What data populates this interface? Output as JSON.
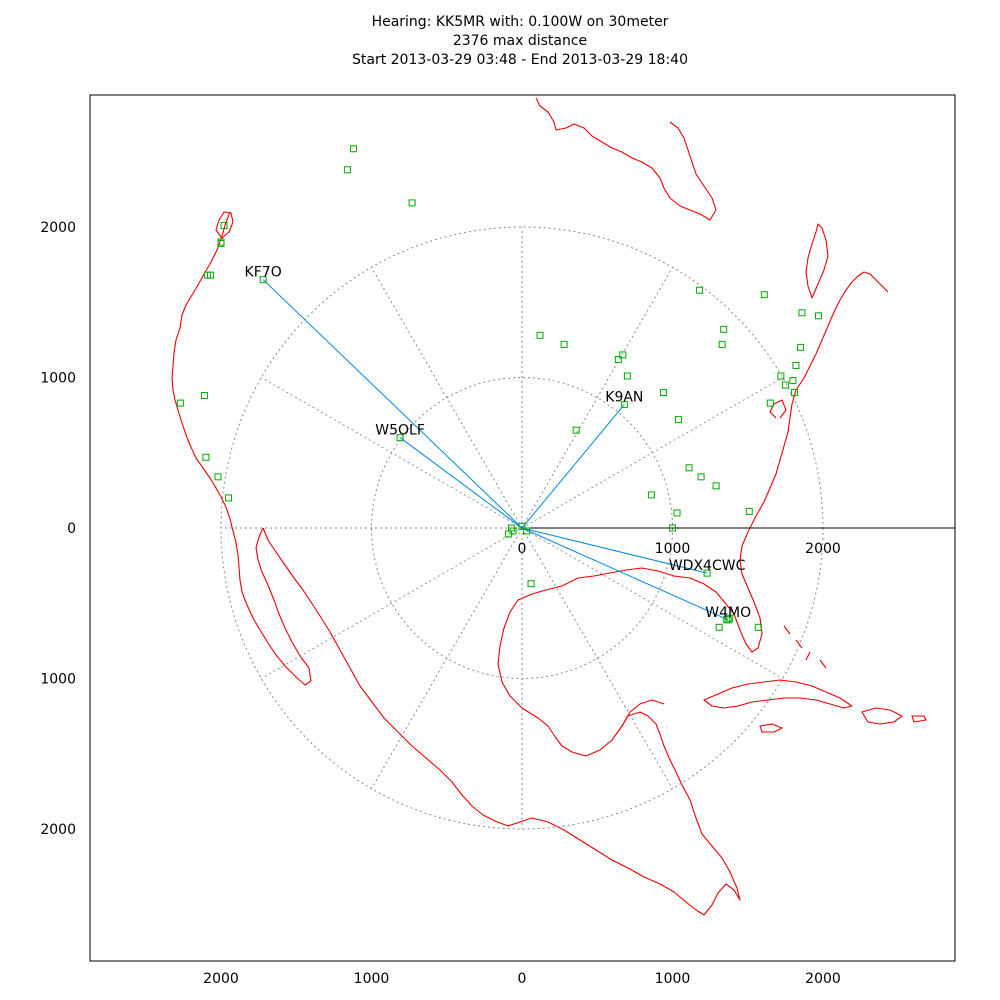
{
  "chart_data": {
    "type": "scatter",
    "title_lines": [
      "Hearing: KK5MR with: 0.100W on 30meter",
      "2376 max distance",
      "Start 2013-03-29 03:48 - End 2013-03-29 18:40"
    ],
    "axes": {
      "x_ticks": [
        2000,
        1000,
        0,
        1000,
        2000
      ],
      "y_ticks": [
        2000,
        1000,
        0,
        1000,
        2000
      ],
      "xlim": [
        -2875,
        2875
      ],
      "ylim": [
        -2875,
        2875
      ],
      "inner_x_ticks": [
        0,
        1000,
        2000
      ]
    },
    "polar_grid": {
      "rings": [
        1000,
        2000
      ],
      "spokes_deg": 30
    },
    "colors": {
      "map": "#ee0000",
      "spots": "#00aa00",
      "paths": "#0088dd",
      "grid": "#888888",
      "axis": "#000000"
    },
    "labeled_paths": [
      {
        "label": "KF7O",
        "x": -1720,
        "y": 1650
      },
      {
        "label": "W5OLF",
        "x": -810,
        "y": 600
      },
      {
        "label": "K9AN",
        "x": 680,
        "y": 820
      },
      {
        "label": "WDX4CWC",
        "x": 1230,
        "y": -300
      },
      {
        "label": "W4MO",
        "x": 1370,
        "y": -610
      }
    ],
    "spots": [
      [
        -1120,
        2520
      ],
      [
        -1160,
        2380
      ],
      [
        -730,
        2160
      ],
      [
        -1980,
        2010
      ],
      [
        -2000,
        1900
      ],
      [
        -2000,
        1890
      ],
      [
        -2090,
        1680
      ],
      [
        -2070,
        1680
      ],
      [
        -2110,
        880
      ],
      [
        -2270,
        830
      ],
      [
        -2100,
        470
      ],
      [
        -2020,
        340
      ],
      [
        -1950,
        200
      ],
      [
        -1720,
        1650
      ],
      [
        -810,
        600
      ],
      [
        120,
        1280
      ],
      [
        280,
        1220
      ],
      [
        640,
        1120
      ],
      [
        670,
        1150
      ],
      [
        700,
        1010
      ],
      [
        680,
        820
      ],
      [
        360,
        650
      ],
      [
        940,
        900
      ],
      [
        1040,
        720
      ],
      [
        1180,
        1580
      ],
      [
        1340,
        1320
      ],
      [
        1330,
        1220
      ],
      [
        1610,
        1550
      ],
      [
        1860,
        1430
      ],
      [
        1970,
        1410
      ],
      [
        1850,
        1200
      ],
      [
        1820,
        1080
      ],
      [
        1720,
        1010
      ],
      [
        1750,
        950
      ],
      [
        1800,
        980
      ],
      [
        1810,
        900
      ],
      [
        1650,
        830
      ],
      [
        1110,
        400
      ],
      [
        1190,
        340
      ],
      [
        1290,
        280
      ],
      [
        860,
        220
      ],
      [
        1030,
        100
      ],
      [
        1510,
        110
      ],
      [
        1000,
        0
      ],
      [
        -60,
        -20
      ],
      [
        -90,
        -40
      ],
      [
        -70,
        0
      ],
      [
        0,
        10
      ],
      [
        30,
        -20
      ],
      [
        60,
        -370
      ],
      [
        1310,
        -660
      ],
      [
        1360,
        -610
      ],
      [
        1380,
        -600
      ],
      [
        1570,
        -660
      ],
      [
        1230,
        -300
      ],
      [
        1370,
        -610
      ]
    ]
  }
}
